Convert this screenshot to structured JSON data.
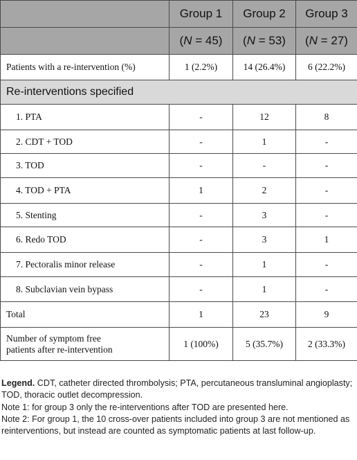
{
  "header": {
    "groups": [
      {
        "name": "Group 1",
        "n_prefix": "(",
        "n_var": "N",
        "n_eq": " = 45)"
      },
      {
        "name": "Group 2",
        "n_prefix": "(",
        "n_var": "N",
        "n_eq": " = 53)"
      },
      {
        "name": "Group 3",
        "n_prefix": "(",
        "n_var": "N",
        "n_eq": " = 27)"
      }
    ]
  },
  "rows": {
    "reintervention": {
      "label": "Patients with a re-intervention (%)",
      "g1": "1 (2.2%)",
      "g2": "14 (26.4%)",
      "g3": "6 (22.2%)"
    },
    "section_title": "Re-interventions specified",
    "specified": [
      {
        "label": "1. PTA",
        "g1": "-",
        "g2": "12",
        "g3": "8"
      },
      {
        "label": "2. CDT + TOD",
        "g1": "-",
        "g2": "1",
        "g3": "-"
      },
      {
        "label": "3. TOD",
        "g1": "-",
        "g2": "-",
        "g3": "-"
      },
      {
        "label": "4. TOD + PTA",
        "g1": "1",
        "g2": "2",
        "g3": "-"
      },
      {
        "label": "5. Stenting",
        "g1": "-",
        "g2": "3",
        "g3": "-"
      },
      {
        "label": "6. Redo TOD",
        "g1": "-",
        "g2": "3",
        "g3": "1"
      },
      {
        "label": "7. Pectoralis minor release",
        "g1": "-",
        "g2": "1",
        "g3": "-"
      },
      {
        "label": "8. Subclavian vein bypass",
        "g1": "-",
        "g2": "1",
        "g3": "-"
      }
    ],
    "total": {
      "label": "Total",
      "g1": "1",
      "g2": "23",
      "g3": "9"
    },
    "symptom_free": {
      "label_line1": "Number of symptom free",
      "label_line2": "patients after re-intervention",
      "g1": "1 (100%)",
      "g2": "5 (35.7%)",
      "g3": "2 (33.3%)"
    }
  },
  "notes": {
    "legend_head": "Legend.",
    "legend_text": " CDT, catheter directed thrombolysis; PTA, percutaneous transluminal angioplasty; TOD, thoracic outlet decompression.",
    "note1": "Note 1: for group 3 only the re-interventions after TOD are presented here.",
    "note2": "Note 2: For group 1, the 10 cross-over patients included into group 3 are not mentioned as reinterventions, but instead are counted as symptomatic patients at last follow-up."
  },
  "colors": {
    "header_bg": "#a6a6a6",
    "section_bg": "#d9d9d9"
  }
}
